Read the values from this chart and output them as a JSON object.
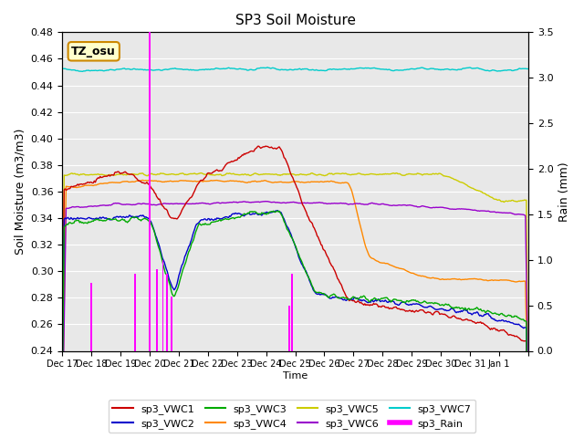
{
  "title": "SP3 Soil Moisture",
  "ylabel_left": "Soil Moisture (m3/m3)",
  "ylabel_right": "Rain (mm)",
  "xlabel": "Time",
  "ylim_left": [
    0.24,
    0.48
  ],
  "ylim_right": [
    0.0,
    3.5
  ],
  "bg_color": "#e8e8e8",
  "annotation_text": "TZ_osu",
  "annotation_bg": "#ffffcc",
  "annotation_border": "#cc8800",
  "series_colors": {
    "sp3_VWC1": "#cc0000",
    "sp3_VWC2": "#0000cc",
    "sp3_VWC3": "#00aa00",
    "sp3_VWC4": "#ff8800",
    "sp3_VWC5": "#cccc00",
    "sp3_VWC6": "#9900cc",
    "sp3_VWC7": "#00cccc",
    "sp3_Rain": "#ff00ff"
  },
  "xtick_positions": [
    0,
    1,
    2,
    3,
    4,
    5,
    6,
    7,
    8,
    9,
    10,
    11,
    12,
    13,
    14,
    15,
    16
  ],
  "xtick_labels": [
    "Dec 17",
    "Dec 18",
    "Dec 19",
    "Dec 20",
    "Dec 21",
    "Dec 22",
    "Dec 23",
    "Dec 24",
    "Dec 25",
    "Dec 26",
    "Dec 27",
    "Dec 28",
    "Dec 29",
    "Dec 30",
    "Dec 31",
    "Jan 1",
    ""
  ],
  "yticks_left": [
    0.24,
    0.26,
    0.28,
    0.3,
    0.32,
    0.34,
    0.36,
    0.38,
    0.4,
    0.42,
    0.44,
    0.46,
    0.48
  ],
  "yticks_right": [
    0.0,
    0.5,
    1.0,
    1.5,
    2.0,
    2.5,
    3.0,
    3.5
  ],
  "num_points": 480,
  "rain_events": [
    [
      1.0,
      0.75
    ],
    [
      2.5,
      0.85
    ],
    [
      3.0,
      3.5
    ],
    [
      3.25,
      0.9
    ],
    [
      3.45,
      1.0
    ],
    [
      3.6,
      0.85
    ],
    [
      3.75,
      0.6
    ],
    [
      7.8,
      0.5
    ],
    [
      7.88,
      0.85
    ]
  ]
}
